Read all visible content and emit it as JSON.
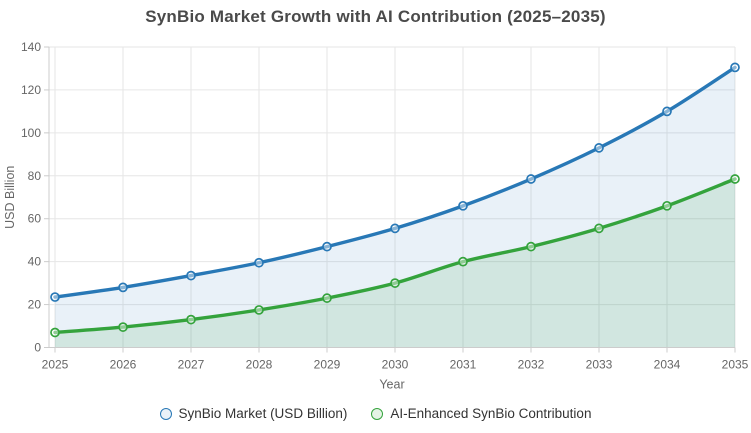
{
  "title": "SynBio Market Growth with AI Contribution (2025–2035)",
  "chart_data": {
    "type": "area",
    "x": [
      2025,
      2026,
      2027,
      2028,
      2029,
      2030,
      2031,
      2032,
      2033,
      2034,
      2035
    ],
    "series": [
      {
        "name": "SynBio Market (USD Billion)",
        "values": [
          23.5,
          28,
          33.5,
          39.5,
          47,
          55.5,
          66,
          78.5,
          93,
          110,
          130.5
        ],
        "color": "#2878b6",
        "fill": "rgba(42,120,182,0.10)"
      },
      {
        "name": "AI-Enhanced SynBio Contribution",
        "values": [
          7,
          9.5,
          13,
          17.5,
          23,
          30,
          40,
          47,
          55.5,
          66,
          78.5
        ],
        "color": "#34a33c",
        "fill": "rgba(52,163,60,0.13)"
      }
    ],
    "xlabel": "Year",
    "ylabel": "USD Billion",
    "ylim": [
      0,
      140
    ],
    "y_tick_step": 20,
    "y_tick_labels": [
      "0",
      "20",
      "40",
      "60",
      "80",
      "100",
      "120",
      "140"
    ],
    "grid": true,
    "legend_position": "bottom",
    "smooth": true,
    "marker": "hollow-circle"
  },
  "colors": {
    "grid": "#e6e6e6",
    "axis": "#cccccc",
    "tick_label": "#666666",
    "axis_title": "#666666",
    "title_text": "#4a4a4a",
    "legend_text": "#333333",
    "marker_fill": "rgba(255,255,255,0.45)"
  }
}
